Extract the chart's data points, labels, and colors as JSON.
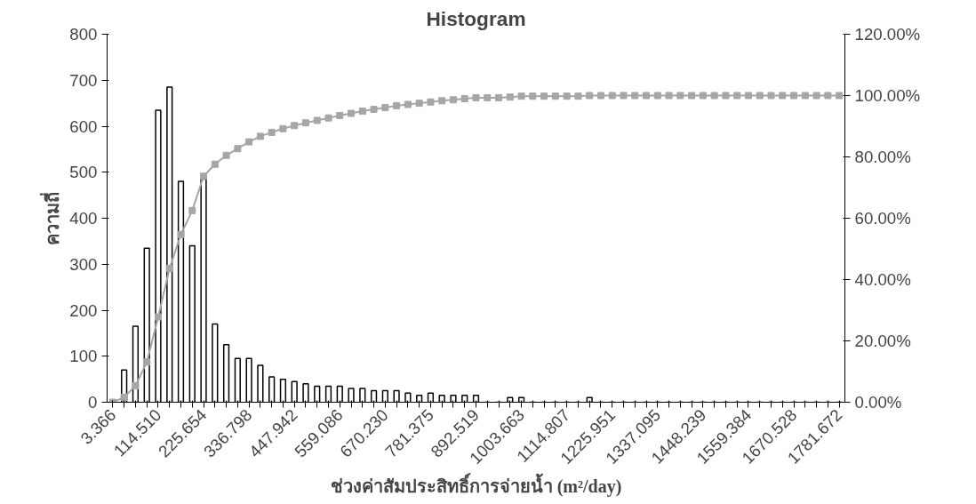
{
  "chart_data": {
    "type": "bar",
    "title": "Histogram",
    "xlabel": "ช่วงค่าสัมประสิทธิ์การจ่ายน้ำ (m²/day)",
    "ylabel": "ความถี่",
    "categories": [
      "3.366",
      null,
      null,
      null,
      "114.510",
      null,
      null,
      null,
      "225.654",
      null,
      null,
      null,
      "336.798",
      null,
      null,
      null,
      "447.942",
      null,
      null,
      null,
      "559.086",
      null,
      null,
      null,
      "670.230",
      null,
      null,
      null,
      "781.375",
      null,
      null,
      null,
      "892.519",
      null,
      null,
      null,
      "1003.663",
      null,
      null,
      null,
      "1114.807",
      null,
      null,
      null,
      "1225.951",
      null,
      null,
      null,
      "1337.095",
      null,
      null,
      null,
      "1448.239",
      null,
      null,
      null,
      "1559.384",
      null,
      null,
      null,
      "1670.528",
      null,
      null,
      null,
      "1781.672"
    ],
    "series": [
      {
        "color": "#000000",
        "values": [
          0,
          70,
          165,
          335,
          635,
          685,
          480,
          340,
          485,
          170,
          125,
          95,
          95,
          80,
          55,
          50,
          45,
          40,
          35,
          35,
          35,
          30,
          30,
          25,
          25,
          25,
          20,
          15,
          20,
          15,
          15,
          15,
          15,
          0,
          0,
          10,
          10,
          0,
          0,
          0,
          0,
          0,
          10,
          0,
          0,
          0,
          0,
          0,
          0,
          0,
          0,
          0,
          0,
          0,
          0,
          0,
          0,
          0,
          0,
          0,
          0,
          0,
          0,
          0,
          0
        ]
      },
      {
        "type": "line",
        "axis": "y2",
        "color": "#a6a6a6",
        "marker": "square",
        "values": [
          0,
          1.6,
          5.4,
          13.1,
          27.8,
          43.6,
          54.7,
          62.5,
          73.7,
          77.6,
          80.5,
          82.7,
          84.9,
          86.7,
          88.0,
          89.2,
          90.2,
          91.1,
          91.9,
          92.7,
          93.5,
          94.2,
          94.9,
          95.5,
          96.1,
          96.7,
          97.1,
          97.5,
          97.9,
          98.3,
          98.6,
          99.0,
          99.3,
          99.3,
          99.3,
          99.5,
          99.8,
          99.8,
          99.8,
          99.8,
          99.8,
          99.8,
          100,
          100,
          100,
          100,
          100,
          100,
          100,
          100,
          100,
          100,
          100,
          100,
          100,
          100,
          100,
          100,
          100,
          100,
          100,
          100,
          100,
          100,
          100
        ]
      }
    ],
    "ylim": [
      0,
      800
    ],
    "yticks": [
      0,
      100,
      200,
      300,
      400,
      500,
      600,
      700,
      800
    ],
    "y2lim": [
      0,
      120
    ],
    "y2ticks": [
      {
        "value": 0,
        "label": "0.00%"
      },
      {
        "value": 20,
        "label": "20.00%"
      },
      {
        "value": 40,
        "label": "40.00%"
      },
      {
        "value": 60,
        "label": "60.00%"
      },
      {
        "value": 80,
        "label": "80.00%"
      },
      {
        "value": 100,
        "label": "100.00%"
      },
      {
        "value": 120,
        "label": "120.00%"
      }
    ],
    "grid": false
  }
}
